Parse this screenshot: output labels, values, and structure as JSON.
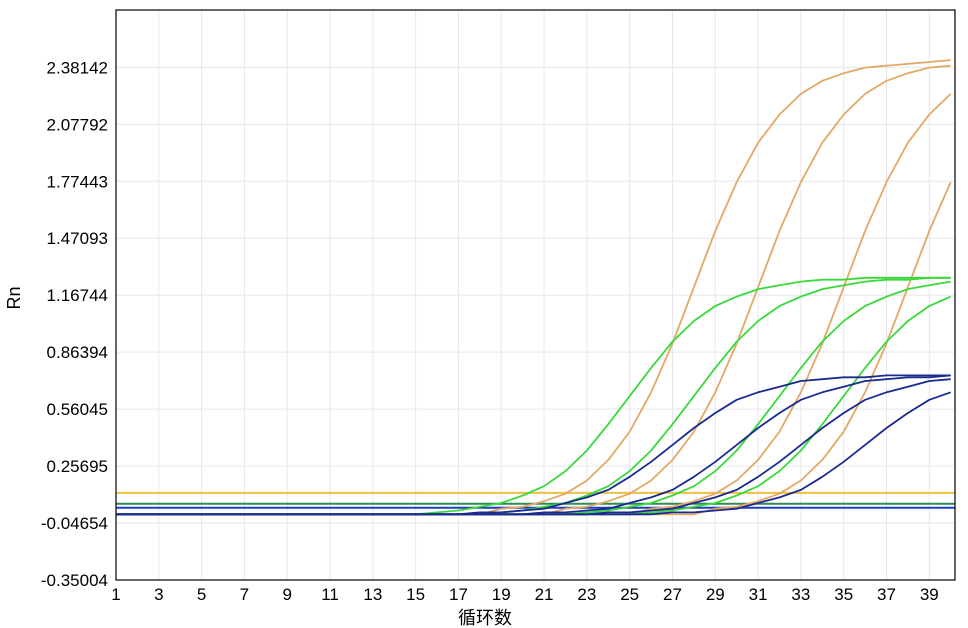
{
  "chart_data": {
    "type": "line",
    "title": "",
    "xlabel": "循环数",
    "ylabel": "Rn",
    "xlim": [
      1,
      40.2
    ],
    "ylim": [
      -0.35004,
      2.687
    ],
    "grid": true,
    "legend": "none",
    "x_ticks": [
      "1",
      "3",
      "5",
      "7",
      "9",
      "11",
      "13",
      "15",
      "17",
      "19",
      "21",
      "23",
      "25",
      "27",
      "29",
      "31",
      "33",
      "35",
      "37",
      "39"
    ],
    "y_ticks": [
      "-0.35004",
      "-0.04654",
      "0.25695",
      "0.56045",
      "0.86394",
      "1.16744",
      "1.47093",
      "1.77443",
      "2.07792",
      "2.38142"
    ],
    "x": [
      1,
      2,
      3,
      4,
      5,
      6,
      7,
      8,
      9,
      10,
      11,
      12,
      13,
      14,
      15,
      16,
      17,
      18,
      19,
      20,
      21,
      22,
      23,
      24,
      25,
      26,
      27,
      28,
      29,
      30,
      31,
      32,
      33,
      34,
      35,
      36,
      37,
      38,
      39,
      40
    ],
    "colors": {
      "orange": "#e3a866",
      "green": "#3ad93a",
      "blue": "#1b2a8f"
    },
    "series": [
      {
        "color": "orange",
        "values": [
          0,
          0,
          0,
          0,
          0,
          0,
          0,
          0,
          0,
          0,
          0,
          0,
          0,
          0,
          0,
          0,
          0,
          0,
          0.03,
          0.04,
          0.07,
          0.11,
          0.18,
          0.29,
          0.44,
          0.65,
          0.91,
          1.21,
          1.51,
          1.77,
          1.98,
          2.13,
          2.24,
          2.31,
          2.35,
          2.38,
          2.39,
          2.4,
          2.41,
          2.42
        ]
      },
      {
        "color": "orange",
        "values": [
          0,
          0,
          0,
          0,
          0,
          0,
          0,
          0,
          0,
          0,
          0,
          0,
          0,
          0,
          0,
          0,
          0,
          0,
          0,
          0,
          0,
          0.03,
          0.04,
          0.07,
          0.11,
          0.18,
          0.29,
          0.44,
          0.65,
          0.91,
          1.21,
          1.51,
          1.77,
          1.98,
          2.13,
          2.24,
          2.31,
          2.35,
          2.38,
          2.39
        ]
      },
      {
        "color": "orange",
        "values": [
          0,
          0,
          0,
          0,
          0,
          0,
          0,
          0,
          0,
          0,
          0,
          0,
          0,
          0,
          0,
          0,
          0,
          0,
          0,
          0,
          0,
          0,
          0,
          0,
          0,
          0.03,
          0.04,
          0.07,
          0.11,
          0.18,
          0.29,
          0.44,
          0.65,
          0.91,
          1.21,
          1.51,
          1.77,
          1.98,
          2.13,
          2.24
        ]
      },
      {
        "color": "orange",
        "values": [
          0,
          0,
          0,
          0,
          0,
          0,
          0,
          0,
          0,
          0,
          0,
          0,
          0,
          0,
          0,
          0,
          0,
          0,
          0,
          0,
          0,
          0,
          0,
          0,
          0,
          0,
          0,
          0,
          0.03,
          0.04,
          0.07,
          0.11,
          0.18,
          0.29,
          0.44,
          0.65,
          0.91,
          1.21,
          1.51,
          1.77
        ]
      },
      {
        "color": "green",
        "values": [
          0,
          0,
          0,
          0,
          0,
          0,
          0,
          0,
          0,
          0,
          0,
          0,
          0,
          0,
          0,
          0.01,
          0.02,
          0.04,
          0.06,
          0.1,
          0.15,
          0.23,
          0.34,
          0.48,
          0.63,
          0.78,
          0.92,
          1.03,
          1.11,
          1.16,
          1.2,
          1.22,
          1.24,
          1.25,
          1.25,
          1.26,
          1.26,
          1.26,
          1.26,
          1.26
        ]
      },
      {
        "color": "green",
        "values": [
          0,
          0,
          0,
          0,
          0,
          0,
          0,
          0,
          0,
          0,
          0,
          0,
          0,
          0,
          0,
          0,
          0,
          0,
          0.01,
          0.02,
          0.04,
          0.06,
          0.1,
          0.15,
          0.23,
          0.34,
          0.48,
          0.63,
          0.78,
          0.92,
          1.03,
          1.11,
          1.16,
          1.2,
          1.22,
          1.24,
          1.25,
          1.25,
          1.26,
          1.26
        ]
      },
      {
        "color": "green",
        "values": [
          0,
          0,
          0,
          0,
          0,
          0,
          0,
          0,
          0,
          0,
          0,
          0,
          0,
          0,
          0,
          0,
          0,
          0,
          0,
          0,
          0,
          0,
          0.01,
          0.02,
          0.04,
          0.06,
          0.1,
          0.15,
          0.23,
          0.34,
          0.48,
          0.63,
          0.78,
          0.92,
          1.03,
          1.11,
          1.16,
          1.2,
          1.22,
          1.24
        ]
      },
      {
        "color": "green",
        "values": [
          0,
          0,
          0,
          0,
          0,
          0,
          0,
          0,
          0,
          0,
          0,
          0,
          0,
          0,
          0,
          0,
          0,
          0,
          0,
          0,
          0,
          0,
          0,
          0,
          0,
          0.01,
          0.02,
          0.04,
          0.06,
          0.1,
          0.15,
          0.23,
          0.34,
          0.48,
          0.63,
          0.78,
          0.92,
          1.03,
          1.11,
          1.16
        ]
      },
      {
        "color": "blue",
        "values": [
          0,
          0,
          0,
          0,
          0,
          0,
          0,
          0,
          0,
          0,
          0,
          0,
          0,
          0,
          0,
          0,
          0,
          0.01,
          0.01,
          0.02,
          0.03,
          0.06,
          0.09,
          0.13,
          0.2,
          0.28,
          0.37,
          0.46,
          0.54,
          0.61,
          0.65,
          0.68,
          0.71,
          0.72,
          0.73,
          0.73,
          0.74,
          0.74,
          0.74,
          0.74
        ]
      },
      {
        "color": "blue",
        "values": [
          0,
          0,
          0,
          0,
          0,
          0,
          0,
          0,
          0,
          0,
          0,
          0,
          0,
          0,
          0,
          0,
          0,
          0,
          0,
          0,
          0.01,
          0.01,
          0.02,
          0.03,
          0.06,
          0.09,
          0.13,
          0.2,
          0.28,
          0.37,
          0.46,
          0.54,
          0.61,
          0.65,
          0.68,
          0.71,
          0.72,
          0.73,
          0.73,
          0.74
        ]
      },
      {
        "color": "blue",
        "values": [
          0,
          0,
          0,
          0,
          0,
          0,
          0,
          0,
          0,
          0,
          0,
          0,
          0,
          0,
          0,
          0,
          0,
          0,
          0,
          0,
          0,
          0,
          0,
          0.01,
          0.01,
          0.02,
          0.03,
          0.06,
          0.09,
          0.13,
          0.2,
          0.28,
          0.37,
          0.46,
          0.54,
          0.61,
          0.65,
          0.68,
          0.71,
          0.72
        ]
      },
      {
        "color": "blue",
        "values": [
          0,
          0,
          0,
          0,
          0,
          0,
          0,
          0,
          0,
          0,
          0,
          0,
          0,
          0,
          0,
          0,
          0,
          0,
          0,
          0,
          0,
          0,
          0,
          0,
          0,
          0,
          0.01,
          0.01,
          0.02,
          0.03,
          0.06,
          0.09,
          0.13,
          0.2,
          0.28,
          0.37,
          0.46,
          0.54,
          0.61,
          0.65
        ]
      }
    ],
    "thresholds": [
      {
        "value": 0.114,
        "color": "#f0c040"
      },
      {
        "value": 0.056,
        "color": "#2e8b57"
      },
      {
        "value": 0.035,
        "color": "#1f3fbf"
      }
    ]
  }
}
